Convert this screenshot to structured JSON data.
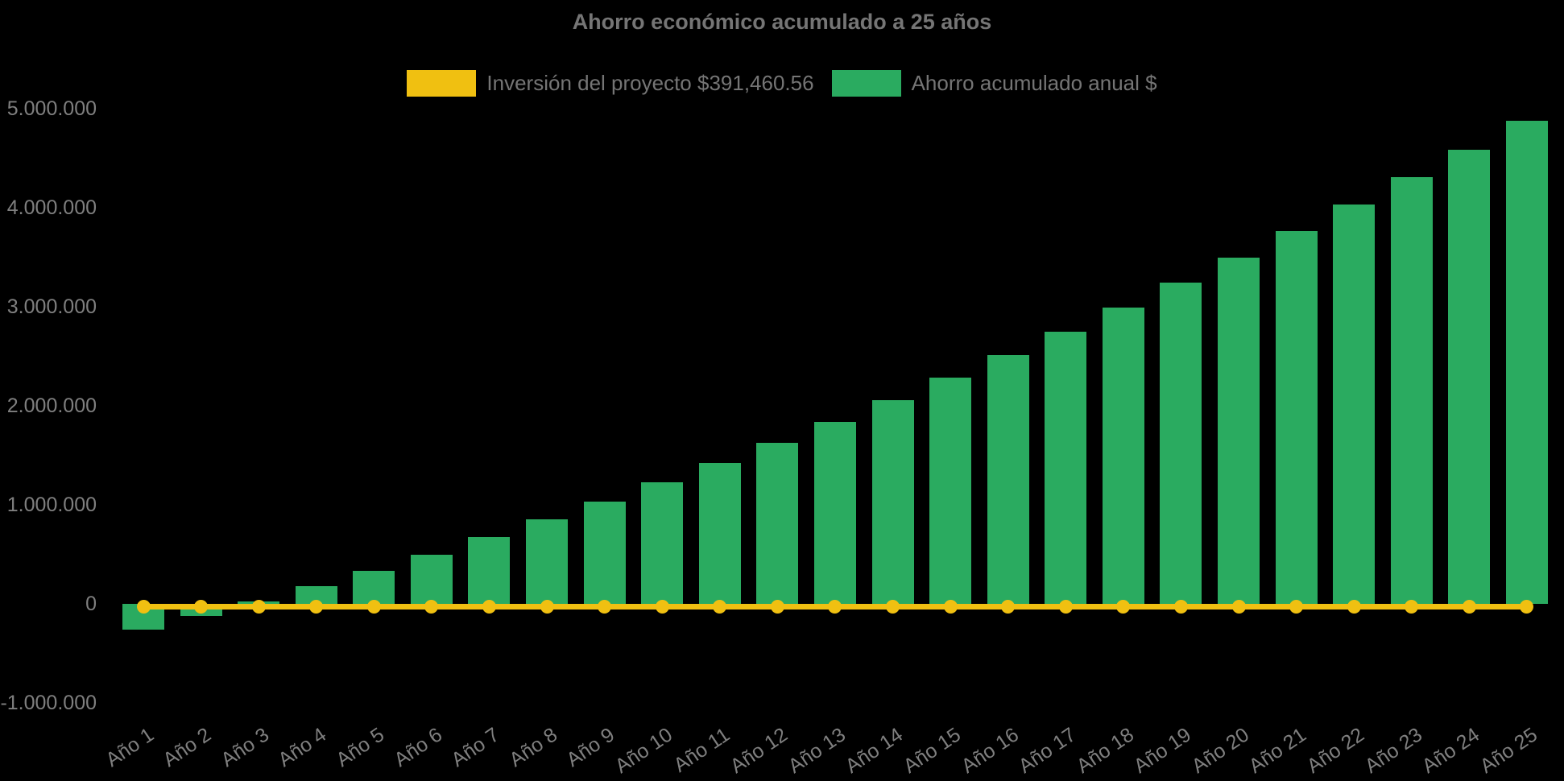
{
  "title": "Ahorro económico acumulado a 25 años",
  "legend": [
    {
      "label": "Inversión del proyecto $391,460.56",
      "color": "#f0c011"
    },
    {
      "label": "Ahorro acumulado anual $",
      "color": "#2aab60"
    }
  ],
  "colors": {
    "background": "#000000",
    "bar_green": "#2aab60",
    "line_yellow": "#f0c011",
    "title_text": "#757575",
    "axis_text": "#7f7f7f"
  },
  "chart_data": {
    "type": "bar",
    "subtype": "combo-bar-line",
    "title": "Ahorro económico acumulado a 25 años",
    "categories": [
      "Año 1",
      "Año 2",
      "Año 3",
      "Año 4",
      "Año 5",
      "Año 6",
      "Año 7",
      "Año 8",
      "Año 9",
      "Año 10",
      "Año 11",
      "Año 12",
      "Año 13",
      "Año 14",
      "Año 15",
      "Año 16",
      "Año 17",
      "Año 18",
      "Año 19",
      "Año 20",
      "Año 21",
      "Año 22",
      "Año 23",
      "Año 24",
      "Año 25"
    ],
    "series": [
      {
        "name": "Inversión del proyecto $391,460.56",
        "type": "line",
        "color": "#f0c011",
        "values": [
          0,
          0,
          0,
          0,
          0,
          0,
          0,
          0,
          0,
          0,
          0,
          0,
          0,
          0,
          0,
          0,
          0,
          0,
          0,
          0,
          0,
          0,
          0,
          0,
          0
        ]
      },
      {
        "name": "Ahorro acumulado anual $",
        "type": "bar",
        "color": "#2aab60",
        "values": [
          -260000,
          -122000,
          23000,
          175000,
          334000,
          500000,
          672000,
          851000,
          1036000,
          1228000,
          1426000,
          1630000,
          1841000,
          2059000,
          2283000,
          2513000,
          2750000,
          2993000,
          3243000,
          3499000,
          3762000,
          4031000,
          4306000,
          4588000,
          4876000
        ]
      }
    ],
    "xlabel": "",
    "ylabel": "",
    "ylim": [
      -1000000,
      5000000
    ],
    "y_tick_labels": [
      "-1.000.000",
      "0",
      "1.000.000",
      "2.000.000",
      "3.000.000",
      "4.000.000",
      "5.000.000"
    ],
    "grid": false,
    "legend_position": "top",
    "x_tick_rotation_deg": -34
  }
}
